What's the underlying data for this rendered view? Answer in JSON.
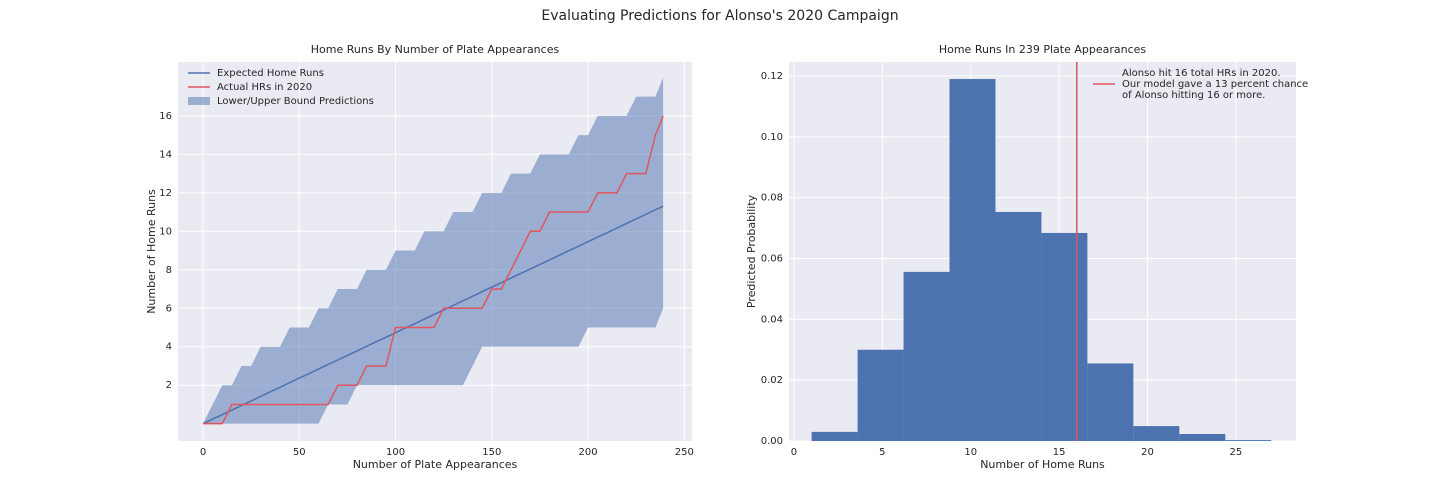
{
  "title": "Evaluating Predictions for Alonso's 2020 Campaign",
  "chart_data": [
    {
      "type": "line",
      "title": "Home Runs By Number of Plate Appearances",
      "xlabel": "Number of Plate Appearances",
      "ylabel": "Number of Home Runs",
      "x": [
        0,
        5,
        10,
        15,
        20,
        25,
        30,
        35,
        40,
        45,
        50,
        55,
        60,
        65,
        70,
        75,
        80,
        85,
        90,
        95,
        100,
        105,
        110,
        115,
        120,
        125,
        130,
        135,
        140,
        145,
        150,
        155,
        160,
        165,
        170,
        175,
        180,
        185,
        190,
        195,
        200,
        205,
        210,
        215,
        220,
        225,
        230,
        235,
        239
      ],
      "series": [
        {
          "name": "Expected Home Runs",
          "color": "#4c72b0",
          "values": [
            0,
            0.24,
            0.47,
            0.71,
            0.95,
            1.18,
            1.42,
            1.66,
            1.89,
            2.13,
            2.37,
            2.6,
            2.84,
            3.08,
            3.31,
            3.55,
            3.78,
            4.02,
            4.26,
            4.49,
            4.73,
            4.97,
            5.2,
            5.44,
            5.68,
            5.91,
            6.15,
            6.39,
            6.62,
            6.86,
            7.1,
            7.33,
            7.57,
            7.81,
            8.04,
            8.28,
            8.51,
            8.75,
            8.99,
            9.22,
            9.46,
            9.7,
            9.93,
            10.17,
            10.41,
            10.64,
            10.88,
            11.12,
            11.3
          ]
        },
        {
          "name": "Actual HRs in 2020",
          "color": "#e0555e",
          "values": [
            0,
            0,
            0,
            1,
            1,
            1,
            1,
            1,
            1,
            1,
            1,
            1,
            1,
            1,
            2,
            2,
            2,
            3,
            3,
            3,
            5,
            5,
            5,
            5,
            5,
            6,
            6,
            6,
            6,
            6,
            7,
            7,
            8,
            9,
            10,
            10,
            11,
            11,
            11,
            11,
            11,
            12,
            12,
            12,
            13,
            13,
            13,
            15,
            16
          ]
        }
      ],
      "band": {
        "name": "Lower/Upper Bound Predictions",
        "color": "#4c72b0",
        "lower": [
          0,
          0,
          0,
          0,
          0,
          0,
          0,
          0,
          0,
          0,
          0,
          0,
          0,
          1,
          1,
          1,
          2,
          2,
          2,
          2,
          2,
          2,
          2,
          2,
          2,
          2,
          2,
          2,
          3,
          4,
          4,
          4,
          4,
          4,
          4,
          4,
          4,
          4,
          4,
          4,
          5,
          5,
          5,
          5,
          5,
          5,
          5,
          5,
          6
        ],
        "upper": [
          0,
          1,
          2,
          2,
          3,
          3,
          4,
          4,
          4,
          5,
          5,
          5,
          6,
          6,
          7,
          7,
          7,
          8,
          8,
          8,
          9,
          9,
          9,
          10,
          10,
          10,
          11,
          11,
          11,
          12,
          12,
          12,
          13,
          13,
          13,
          14,
          14,
          14,
          14,
          15,
          15,
          16,
          16,
          16,
          16,
          17,
          17,
          17,
          18
        ]
      },
      "xlim": [
        -13,
        254
      ],
      "ylim": [
        -0.9,
        18.8
      ],
      "xticks": [
        0,
        50,
        100,
        150,
        200,
        250
      ],
      "yticks": [
        2,
        4,
        6,
        8,
        10,
        12,
        14,
        16
      ],
      "grid": true,
      "legend": "upper left"
    },
    {
      "type": "histogram",
      "title": "Home Runs In 239 Plate Appearances",
      "xlabel": "Number of Home Runs",
      "ylabel": "Predicted Probability",
      "bins": [
        1,
        3.6,
        6.2,
        8.8,
        11.4,
        14,
        16.6,
        19.2,
        21.8,
        24.4,
        27
      ],
      "values": [
        0.003,
        0.03,
        0.0556,
        0.119,
        0.0753,
        0.0684,
        0.0255,
        0.0049,
        0.0023,
        0.0003
      ],
      "color": "#4c72b0",
      "vline": {
        "x": 16,
        "color": "#e0555e",
        "label": [
          "Alonso hit 16 total HRs in 2020.",
          "Our model gave a 13 percent chance",
          "of Alonso hitting 16 or more."
        ]
      },
      "xlim": [
        -0.28,
        28.4
      ],
      "ylim": [
        0,
        0.1246
      ],
      "xticks": [
        0,
        5,
        10,
        15,
        20,
        25
      ],
      "yticks": [
        {
          "value": 0,
          "label": "0.00"
        },
        0.02,
        0.04,
        0.06,
        0.08,
        {
          "value": 0.1,
          "label": "0.10"
        },
        {
          "value": 0.12,
          "label": "0.12"
        }
      ],
      "grid": true,
      "legend": "upper right"
    }
  ]
}
